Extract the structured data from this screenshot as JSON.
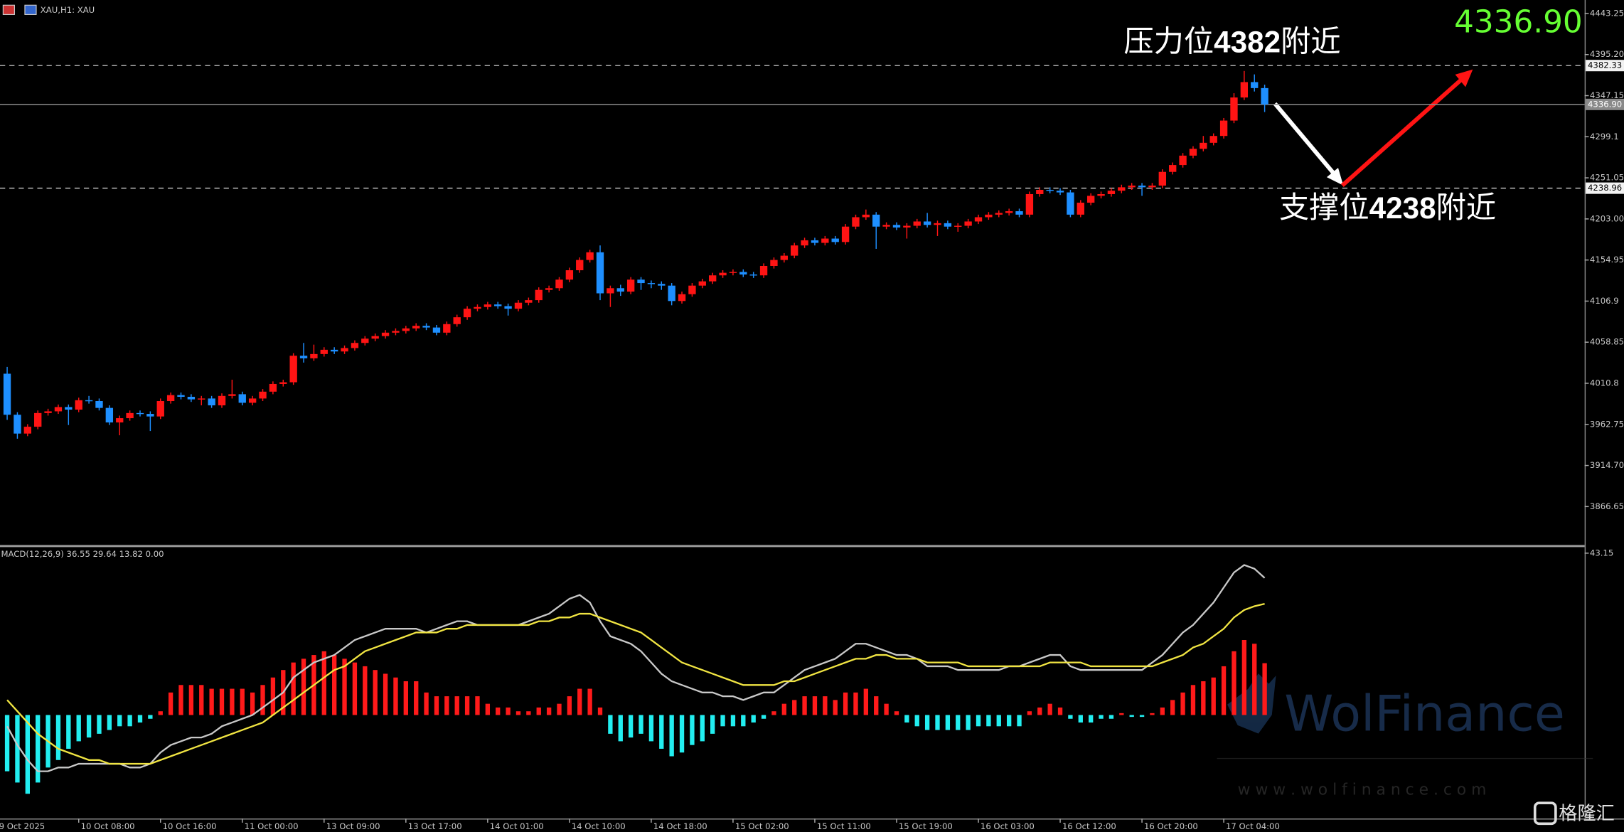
{
  "chart_data": [
    {
      "type": "candlestick",
      "title": "XAU,H1: XAU",
      "open": [
        4022,
        3974,
        3952,
        3960,
        3976,
        3978,
        3983,
        3980,
        3991,
        3990,
        3982,
        3965,
        3970,
        3976,
        3975,
        3972,
        3990,
        3997,
        3995,
        3992,
        3993,
        3985,
        3996,
        3998,
        3988,
        3993,
        4001,
        4010,
        4012,
        4043,
        4040,
        4045,
        4050,
        4048,
        4052,
        4058,
        4063,
        4066,
        4070,
        4072,
        4075,
        4078,
        4076,
        4070,
        4080,
        4088,
        4098,
        4100,
        4103,
        4101,
        4098,
        4105,
        4108,
        4120,
        4122,
        4132,
        4143,
        4155,
        4164,
        4116,
        4122,
        4118,
        4132,
        4128,
        4127,
        4125,
        4107,
        4115,
        4125,
        4130,
        4137,
        4140,
        4141,
        4138,
        4137,
        4148,
        4155,
        4160,
        4172,
        4178,
        4175,
        4180,
        4176,
        4194,
        4205,
        4208,
        4194,
        4196,
        4193,
        4195,
        4200,
        4196,
        4198,
        4194,
        4195,
        4200,
        4205,
        4208,
        4210,
        4212,
        4208,
        4232,
        4237,
        4236,
        4234,
        4208,
        4222,
        4230,
        4232,
        4236,
        4240,
        4242,
        4240,
        4242,
        4258,
        4266,
        4277,
        4285,
        4292,
        4300,
        4318,
        4345,
        4363,
        4356
      ],
      "high": [
        4030,
        3977,
        3963,
        3979,
        3981,
        3986,
        3986,
        3994,
        3996,
        3993,
        3985,
        3973,
        3979,
        3979,
        3978,
        3993,
        4000,
        4000,
        3998,
        3996,
        3996,
        3999,
        4015,
        4001,
        3996,
        4004,
        4013,
        4015,
        4046,
        4058,
        4056,
        4053,
        4053,
        4055,
        4061,
        4066,
        4069,
        4073,
        4075,
        4078,
        4081,
        4081,
        4079,
        4083,
        4091,
        4101,
        4103,
        4106,
        4106,
        4104,
        4108,
        4111,
        4123,
        4125,
        4135,
        4146,
        4158,
        4167,
        4172,
        4125,
        4126,
        4135,
        4135,
        4131,
        4130,
        4128,
        4118,
        4128,
        4133,
        4140,
        4143,
        4144,
        4144,
        4141,
        4151,
        4158,
        4163,
        4175,
        4181,
        4181,
        4183,
        4183,
        4197,
        4208,
        4214,
        4211,
        4199,
        4199,
        4198,
        4203,
        4210,
        4201,
        4201,
        4198,
        4203,
        4208,
        4211,
        4213,
        4215,
        4215,
        4235,
        4240,
        4240,
        4239,
        4237,
        4225,
        4233,
        4235,
        4239,
        4243,
        4245,
        4245,
        4245,
        4261,
        4269,
        4280,
        4288,
        4300,
        4303,
        4321,
        4350,
        4376,
        4372,
        4360
      ],
      "low": [
        3968,
        3946,
        3949,
        3957,
        3973,
        3975,
        3962,
        3977,
        3987,
        3979,
        3962,
        3950,
        3967,
        3972,
        3955,
        3969,
        3987,
        3992,
        3989,
        3985,
        3982,
        3982,
        3993,
        3985,
        3985,
        3990,
        3998,
        4007,
        4009,
        4035,
        4037,
        4042,
        4045,
        4045,
        4049,
        4055,
        4060,
        4063,
        4067,
        4069,
        4072,
        4073,
        4067,
        4067,
        4077,
        4085,
        4095,
        4097,
        4098,
        4090,
        4095,
        4102,
        4105,
        4117,
        4119,
        4129,
        4140,
        4152,
        4108,
        4100,
        4113,
        4115,
        4120,
        4122,
        4120,
        4102,
        4104,
        4112,
        4122,
        4127,
        4134,
        4137,
        4135,
        4134,
        4134,
        4145,
        4152,
        4157,
        4169,
        4172,
        4172,
        4173,
        4173,
        4191,
        4202,
        4168,
        4191,
        4190,
        4180,
        4192,
        4193,
        4183,
        4191,
        4188,
        4192,
        4197,
        4202,
        4205,
        4207,
        4205,
        4205,
        4229,
        4233,
        4231,
        4205,
        4205,
        4219,
        4227,
        4229,
        4233,
        4237,
        4230,
        4237,
        4239,
        4255,
        4263,
        4274,
        4282,
        4289,
        4297,
        4315,
        4342,
        4352,
        4328
      ],
      "close": [
        3974,
        3952,
        3960,
        3976,
        3978,
        3983,
        3980,
        3991,
        3990,
        3982,
        3965,
        3970,
        3976,
        3975,
        3972,
        3990,
        3997,
        3995,
        3992,
        3993,
        3985,
        3996,
        3998,
        3988,
        3993,
        4001,
        4010,
        4012,
        4043,
        4040,
        4045,
        4050,
        4048,
        4052,
        4058,
        4063,
        4066,
        4070,
        4072,
        4075,
        4078,
        4076,
        4070,
        4080,
        4088,
        4098,
        4100,
        4103,
        4101,
        4098,
        4105,
        4108,
        4120,
        4122,
        4132,
        4143,
        4155,
        4164,
        4116,
        4122,
        4118,
        4132,
        4128,
        4127,
        4125,
        4107,
        4115,
        4125,
        4130,
        4137,
        4140,
        4141,
        4138,
        4137,
        4148,
        4155,
        4160,
        4172,
        4178,
        4175,
        4180,
        4176,
        4194,
        4205,
        4208,
        4194,
        4196,
        4193,
        4195,
        4200,
        4196,
        4198,
        4194,
        4195,
        4200,
        4205,
        4208,
        4210,
        4212,
        4208,
        4232,
        4237,
        4236,
        4234,
        4208,
        4222,
        4230,
        4232,
        4236,
        4240,
        4242,
        4240,
        4242,
        4258,
        4266,
        4277,
        4285,
        4292,
        4300,
        4318,
        4345,
        4363,
        4356,
        4336.9
      ],
      "up_color": "#ff1414",
      "down_color": "#1e8fff",
      "xlim": [
        -0.7,
        154.3
      ],
      "xticks": [
        {
          "value": -1,
          "label": "9 Oct 2025"
        },
        {
          "value": 7,
          "label": "10 Oct 08:00"
        },
        {
          "value": 15,
          "label": "10 Oct 16:00"
        },
        {
          "value": 23,
          "label": "11 Oct 00:00"
        },
        {
          "value": 31,
          "label": "13 Oct 09:00"
        },
        {
          "value": 39,
          "label": "13 Oct 17:00"
        },
        {
          "value": 47,
          "label": "14 Oct 01:00"
        },
        {
          "value": 55,
          "label": "14 Oct 10:00"
        },
        {
          "value": 63,
          "label": "14 Oct 18:00"
        },
        {
          "value": 71,
          "label": "15 Oct 02:00"
        },
        {
          "value": 79,
          "label": "15 Oct 11:00"
        },
        {
          "value": 87,
          "label": "15 Oct 19:00"
        },
        {
          "value": 95,
          "label": "16 Oct 03:00"
        },
        {
          "value": 103,
          "label": "16 Oct 12:00"
        },
        {
          "value": 111,
          "label": "16 Oct 20:00"
        },
        {
          "value": 119,
          "label": "17 Oct 04:00"
        }
      ],
      "ylim": [
        3821.7,
        4459
      ],
      "yticks": [
        4443.25,
        {
          "value": 4395.2,
          "label": "4395.20"
        },
        4347.15,
        4299.1,
        4251.05,
        {
          "value": 4203,
          "label": "4203.00"
        },
        4154.95,
        4106.9,
        4058.85,
        4010.8,
        3962.75,
        {
          "value": 3914.7,
          "label": "3914.70"
        },
        3866.65
      ],
      "levels": [
        {
          "value": 4382.33,
          "label": "4382.33",
          "style": "dashed"
        },
        {
          "value": 4336.9,
          "label": "4336.90",
          "style": "current"
        },
        {
          "value": 4238.96,
          "label": "4238.96",
          "style": "dashed"
        }
      ],
      "price_display": "4336.90",
      "price_display_color": "#66ff33",
      "annotations": [
        {
          "parts": [
            "压力位",
            "4382",
            "附近"
          ]
        },
        {
          "parts": [
            "支撑位",
            "4238",
            "附近"
          ]
        }
      ]
    },
    {
      "type": "macd",
      "label": "MACD(12,26,9) 36.55 29.64 13.82 0.00",
      "histogram": {
        "up_color": "#ff1a1a",
        "down_color": "#22eef0",
        "values": [
          -15,
          -18,
          -21,
          -18,
          -14,
          -12,
          -9,
          -7,
          -6,
          -5,
          -4,
          -3,
          -3,
          -2,
          -1,
          1,
          6,
          8,
          8,
          8,
          7,
          7,
          7,
          7,
          6,
          8,
          10,
          12,
          14,
          15,
          16,
          17,
          16,
          15,
          14,
          13,
          12,
          11,
          10,
          9,
          9,
          6,
          5,
          5,
          5,
          5,
          5,
          3,
          2,
          2,
          1,
          1,
          2,
          2,
          3,
          5,
          7,
          7,
          2,
          -5,
          -7,
          -6,
          -5,
          -7,
          -9,
          -11,
          -10,
          -8,
          -7,
          -5,
          -3,
          -3,
          -3,
          -2,
          -1,
          1,
          3,
          4,
          5,
          5,
          5,
          4,
          6,
          6,
          7,
          5,
          3,
          1,
          -2,
          -3,
          -4,
          -4,
          -4,
          -4,
          -4,
          -3,
          -3,
          -3,
          -3,
          -3,
          1,
          2,
          3,
          2,
          -1,
          -2,
          -2,
          -1,
          -1,
          0.5,
          -0.5,
          -0.5,
          0.5,
          2,
          4,
          6,
          8,
          9,
          10,
          13,
          17,
          20,
          19,
          13.82
        ]
      },
      "series": [
        {
          "color": "#c8c8c8",
          "values": [
            -3,
            -8,
            -12,
            -15,
            -15,
            -14,
            -14,
            -13,
            -13,
            -13,
            -13,
            -13,
            -14,
            -14,
            -13,
            -10,
            -8,
            -7,
            -6,
            -6,
            -5,
            -3,
            -2,
            -1,
            0,
            2,
            4,
            6,
            10,
            12,
            14,
            15,
            16,
            18,
            20,
            21,
            22,
            23,
            23,
            23,
            23,
            22,
            23,
            24,
            25,
            25,
            24,
            24,
            24,
            24,
            24,
            25,
            26,
            27,
            29,
            31,
            32,
            30,
            25,
            21,
            20,
            19,
            17,
            14,
            11,
            9,
            8,
            7,
            6,
            6,
            5,
            5,
            4,
            5,
            6,
            6,
            8,
            10,
            12,
            13,
            14,
            15,
            17,
            19,
            19,
            18,
            17,
            16,
            16,
            15,
            13,
            13,
            13,
            12,
            12,
            12,
            12,
            12,
            13,
            13,
            14,
            15,
            16,
            16,
            13,
            12,
            12,
            12,
            12,
            12,
            12,
            12,
            14,
            16,
            19,
            22,
            24,
            27,
            30,
            34,
            38,
            40,
            39,
            36.55
          ]
        },
        {
          "color": "#f0e442",
          "values": [
            4,
            1,
            -2,
            -5,
            -7,
            -9,
            -10,
            -11,
            -12,
            -12,
            -13,
            -13,
            -13,
            -13,
            -13,
            -12,
            -11,
            -10,
            -9,
            -8,
            -7,
            -6,
            -5,
            -4,
            -3,
            -2,
            0,
            2,
            4,
            6,
            8,
            10,
            12,
            13,
            15,
            17,
            18,
            19,
            20,
            21,
            22,
            22,
            22,
            23,
            23,
            24,
            24,
            24,
            24,
            24,
            24,
            24,
            25,
            25,
            26,
            26,
            27,
            27,
            26,
            25,
            24,
            23,
            22,
            20,
            18,
            16,
            14,
            13,
            12,
            11,
            10,
            9,
            8,
            8,
            8,
            8,
            9,
            9,
            10,
            11,
            12,
            13,
            14,
            15,
            15,
            16,
            16,
            15,
            15,
            15,
            14,
            14,
            14,
            14,
            13,
            13,
            13,
            13,
            13,
            13,
            13,
            13,
            14,
            14,
            14,
            14,
            13,
            13,
            13,
            13,
            13,
            13,
            13,
            14,
            15,
            16,
            18,
            19,
            21,
            23,
            26,
            28,
            29,
            29.64
          ]
        }
      ],
      "xlim": [
        -0.7,
        154.3
      ],
      "ylim": [
        -27.6,
        44.5
      ],
      "yticks": [
        43.15
      ]
    }
  ],
  "watermark": {
    "brand": "WolFinance",
    "url": "w w w . w o l f i n a n c e . c o m",
    "logo": "格隆汇"
  }
}
